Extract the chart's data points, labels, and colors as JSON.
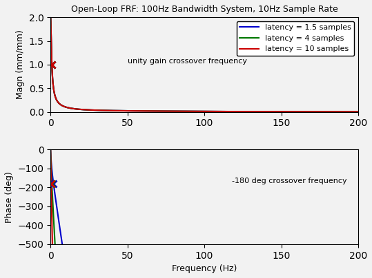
{
  "title": "Open-Loop FRF: 100Hz Bandwidth System, 10Hz Sample Rate",
  "xlabel": "Frequency (Hz)",
  "ylabel_top": "Magn (mm/mm)",
  "ylabel_bot": "Phase (deg)",
  "f_min": 0,
  "f_max": 200,
  "mag_ylim": [
    0,
    2
  ],
  "phase_ylim": [
    -500,
    0
  ],
  "mag_yticks": [
    0,
    0.5,
    1.0,
    1.5,
    2.0
  ],
  "phase_yticks": [
    -500,
    -400,
    -300,
    -200,
    -100,
    0
  ],
  "xticks": [
    0,
    50,
    100,
    150,
    200
  ],
  "colors": [
    "#0000cc",
    "#007700",
    "#cc0000"
  ],
  "latencies": [
    1.5,
    4.0,
    10.0
  ],
  "sample_rate": 10,
  "bandwidth_hz": 100,
  "legend_labels": [
    "latency = 1.5 samples",
    "latency = 4 samples",
    "latency = 10 samples"
  ],
  "unity_gain_annotation": "unity gain crossover frequency",
  "phase_crossover_annotation": "-180 deg crossover frequency",
  "bg_color": "#f2f2f2",
  "line_width": 1.5,
  "title_fontsize": 9,
  "label_fontsize": 9,
  "legend_fontsize": 8,
  "annot_fontsize": 8
}
